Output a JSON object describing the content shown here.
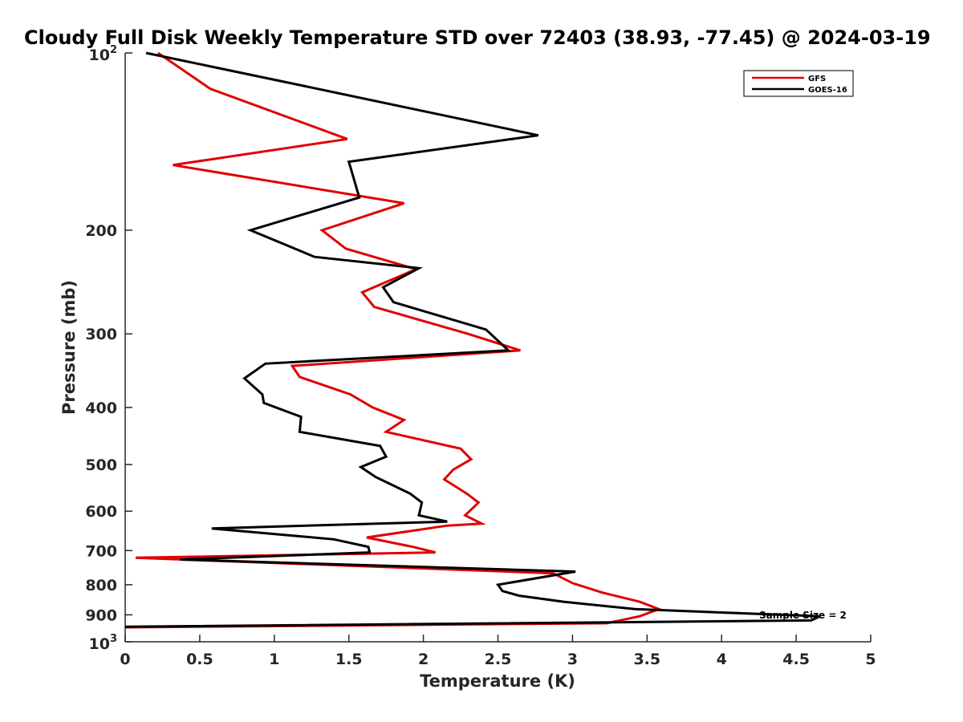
{
  "chart_data": {
    "type": "line",
    "title": "Cloudy Full Disk Weekly Temperature STD over 72403 (38.93, -77.45) @ 2024-03-19",
    "xlabel": "Temperature (K)",
    "ylabel": "Pressure (mb)",
    "xlim": [
      0,
      5
    ],
    "ylim": [
      100,
      1000
    ],
    "yscale": "log",
    "y_reversed": true,
    "grid": false,
    "legend_position": "top-right",
    "x_ticks": [
      "0",
      "0.5",
      "1",
      "1.5",
      "2",
      "2.5",
      "3",
      "3.5",
      "4",
      "4.5",
      "5"
    ],
    "y_ticks": [
      {
        "value": 100,
        "base": "10",
        "exp": "2"
      },
      {
        "value": 200,
        "label": "200"
      },
      {
        "value": 300,
        "label": "300"
      },
      {
        "value": 400,
        "label": "400"
      },
      {
        "value": 500,
        "label": "500"
      },
      {
        "value": 600,
        "label": "600"
      },
      {
        "value": 700,
        "label": "700"
      },
      {
        "value": 800,
        "label": "800"
      },
      {
        "value": 900,
        "label": "900"
      },
      {
        "value": 1000,
        "base": "10",
        "exp": "3"
      }
    ],
    "annotation": "Sample Size = 2",
    "series": [
      {
        "name": "GFS",
        "color": "#e00000",
        "x": [
          0.22,
          0.57,
          1.49,
          0.32,
          1.87,
          1.32,
          1.48,
          1.95,
          1.59,
          1.67,
          2.3,
          2.65,
          1.12,
          1.17,
          1.51,
          1.66,
          1.87,
          1.75,
          2.25,
          2.32,
          2.2,
          2.14,
          2.29,
          2.37,
          2.28,
          2.39,
          2.16,
          1.62,
          1.93,
          2.08,
          0.07,
          2.87,
          3.0,
          3.2,
          3.45,
          3.58,
          3.45,
          3.23,
          0
        ],
        "y": [
          100,
          115,
          140,
          155,
          180,
          200,
          215,
          233,
          255,
          270,
          300,
          320,
          340,
          355,
          380,
          400,
          420,
          440,
          470,
          490,
          510,
          530,
          560,
          580,
          610,
          630,
          635,
          665,
          690,
          705,
          720,
          765,
          795,
          825,
          855,
          880,
          905,
          930,
          945
        ]
      },
      {
        "name": "GOES-16",
        "color": "#000000",
        "x": [
          0.14,
          1.07,
          2.77,
          1.5,
          1.57,
          0.84,
          1.27,
          1.97,
          1.73,
          1.8,
          2.42,
          2.57,
          0.94,
          0.8,
          0.92,
          0.93,
          1.18,
          1.17,
          1.71,
          1.75,
          1.58,
          1.68,
          1.91,
          1.99,
          1.97,
          2.16,
          0.58,
          1.4,
          1.63,
          1.64,
          0.37,
          3.02,
          2.5,
          2.53,
          2.64,
          2.94,
          3.42,
          4.66,
          4.6,
          0
        ],
        "y": [
          100,
          112,
          138,
          153,
          176,
          200,
          222,
          232,
          250,
          265,
          295,
          320,
          337,
          357,
          380,
          393,
          415,
          440,
          465,
          485,
          505,
          525,
          560,
          580,
          610,
          625,
          642,
          670,
          690,
          705,
          725,
          760,
          800,
          820,
          835,
          855,
          880,
          905,
          920,
          943
        ]
      }
    ]
  }
}
